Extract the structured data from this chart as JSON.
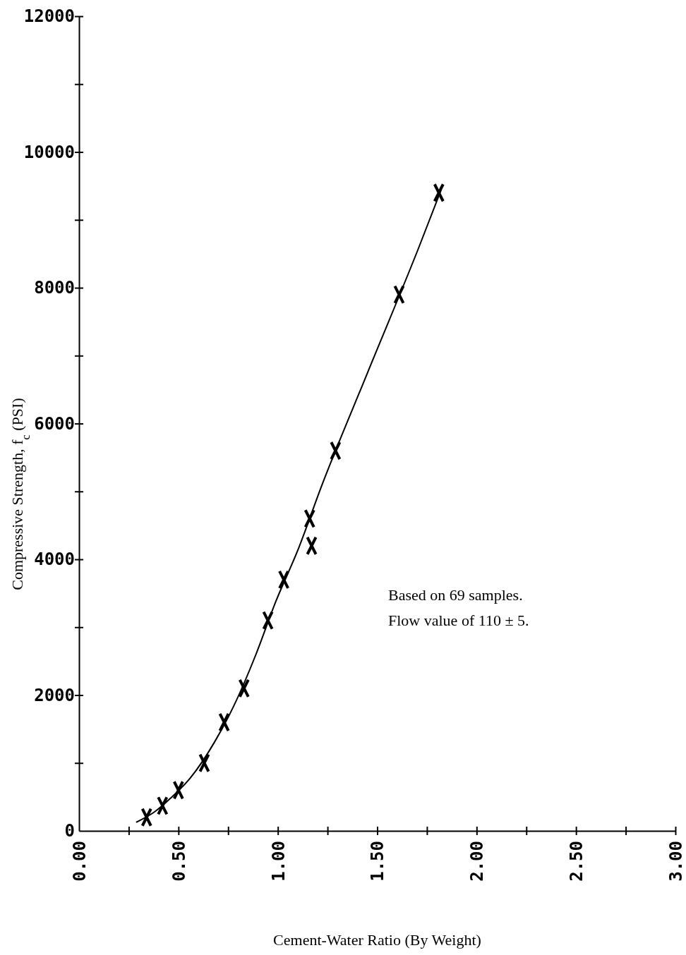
{
  "chart_data": {
    "type": "scatter",
    "xlabel": "Cement-Water Ratio (By Weight)",
    "ylabel": "Compressive Strength, f$_{c}$ (PSI)",
    "xlim": [
      0,
      3
    ],
    "ylim": [
      0,
      12000
    ],
    "xticks": [
      {
        "value": 0,
        "label": "0.00"
      },
      {
        "value": 0.25,
        "label": null
      },
      {
        "value": 0.5,
        "label": "0.50"
      },
      {
        "value": 0.75,
        "label": null
      },
      {
        "value": 1,
        "label": "1.00"
      },
      {
        "value": 1.25,
        "label": null
      },
      {
        "value": 1.5,
        "label": "1.50"
      },
      {
        "value": 1.75,
        "label": null
      },
      {
        "value": 2,
        "label": "2.00"
      },
      {
        "value": 2.25,
        "label": null
      },
      {
        "value": 2.5,
        "label": "2.50"
      },
      {
        "value": 2.75,
        "label": null
      },
      {
        "value": 3,
        "label": "3.00"
      }
    ],
    "yticks": [
      0,
      {
        "value": 1000,
        "label": null
      },
      2000,
      {
        "value": 3000,
        "label": null
      },
      4000,
      {
        "value": 5000,
        "label": null
      },
      6000,
      {
        "value": 7000,
        "label": null
      },
      8000,
      {
        "value": 9000,
        "label": null
      },
      10000,
      {
        "value": 11000,
        "label": null
      },
      12000
    ],
    "grid": false,
    "series": [
      {
        "color": "#000000",
        "marker": "cross",
        "x": [
          0.34,
          0.42,
          0.5,
          0.63,
          0.73,
          0.83,
          0.95,
          1.03,
          1.16,
          1.17,
          1.29,
          1.61,
          1.81
        ],
        "values": [
          200,
          370,
          600,
          1000,
          1600,
          2100,
          3100,
          3700,
          4600,
          4200,
          5600,
          7900,
          9400
        ]
      },
      {
        "type": "line",
        "color": "#000000",
        "line_style": "solid",
        "x": [
          0.29,
          0.38,
          0.46,
          0.56,
          0.68,
          0.78,
          0.89,
          0.99,
          1.1,
          1.22,
          1.45,
          1.71,
          1.82
        ],
        "values": [
          130,
          280,
          480,
          780,
          1300,
          1850,
          2600,
          3380,
          4130,
          5080,
          6740,
          8600,
          9430
        ]
      }
    ],
    "annotations": [
      "Based on 69 samples.",
      "Flow value of 110 ± 5."
    ]
  }
}
